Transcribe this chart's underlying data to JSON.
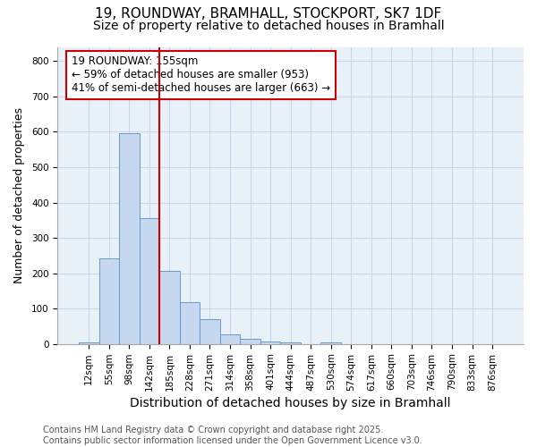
{
  "title": "19, ROUNDWAY, BRAMHALL, STOCKPORT, SK7 1DF",
  "subtitle": "Size of property relative to detached houses in Bramhall",
  "xlabel": "Distribution of detached houses by size in Bramhall",
  "ylabel": "Number of detached properties",
  "bar_labels": [
    "12sqm",
    "55sqm",
    "98sqm",
    "142sqm",
    "185sqm",
    "228sqm",
    "271sqm",
    "314sqm",
    "358sqm",
    "401sqm",
    "444sqm",
    "487sqm",
    "530sqm",
    "574sqm",
    "617sqm",
    "660sqm",
    "703sqm",
    "746sqm",
    "790sqm",
    "833sqm",
    "876sqm"
  ],
  "bar_values": [
    5,
    242,
    597,
    357,
    207,
    118,
    70,
    28,
    14,
    8,
    5,
    0,
    4,
    0,
    0,
    0,
    0,
    0,
    0,
    0,
    0
  ],
  "bar_color": "#c5d8f0",
  "bar_edgecolor": "#6699cc",
  "vline_x": 3.5,
  "vline_color": "#cc0000",
  "annotation_text": "19 ROUNDWAY: 155sqm\n← 59% of detached houses are smaller (953)\n41% of semi-detached houses are larger (663) →",
  "annotation_box_facecolor": "white",
  "annotation_box_edgecolor": "#cc0000",
  "ylim": [
    0,
    840
  ],
  "yticks": [
    0,
    100,
    200,
    300,
    400,
    500,
    600,
    700,
    800
  ],
  "grid_color": "#c8d8ea",
  "figure_facecolor": "#ffffff",
  "axes_facecolor": "#e8f0f8",
  "title_fontsize": 11,
  "subtitle_fontsize": 10,
  "tick_fontsize": 7.5,
  "ylabel_fontsize": 9,
  "xlabel_fontsize": 10,
  "annotation_fontsize": 8.5,
  "footer": "Contains HM Land Registry data © Crown copyright and database right 2025.\nContains public sector information licensed under the Open Government Licence v3.0.",
  "footer_fontsize": 7
}
